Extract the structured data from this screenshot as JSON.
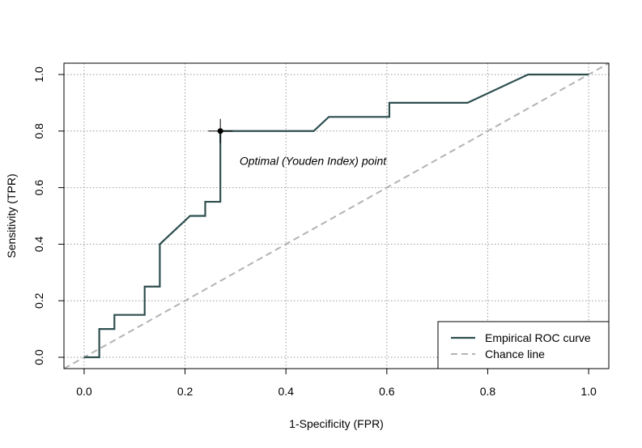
{
  "chart_data": {
    "type": "line",
    "title": "",
    "xlabel": "1-Specificity (FPR)",
    "ylabel": "Sensitivity (TPR)",
    "xlim": [
      -0.04,
      1.04
    ],
    "ylim": [
      -0.04,
      1.04
    ],
    "x_ticks": [
      0.0,
      0.2,
      0.4,
      0.6,
      0.8,
      1.0
    ],
    "y_ticks": [
      0.0,
      0.2,
      0.4,
      0.6,
      0.8,
      1.0
    ],
    "x_tick_labels": [
      "0.0",
      "0.2",
      "0.4",
      "0.6",
      "0.8",
      "1.0"
    ],
    "y_tick_labels": [
      "0.0",
      "0.2",
      "0.4",
      "0.6",
      "0.8",
      "1.0"
    ],
    "grid": true,
    "legend_position": "bottom-right",
    "series": [
      {
        "name": "Empirical ROC curve",
        "style": "solid",
        "color": "#2F4F4F",
        "x": [
          0.0,
          0.03,
          0.03,
          0.06,
          0.06,
          0.12,
          0.12,
          0.15,
          0.15,
          0.21,
          0.24,
          0.24,
          0.27,
          0.27,
          0.455,
          0.485,
          0.605,
          0.605,
          0.76,
          0.88,
          1.0
        ],
        "y": [
          0.0,
          0.0,
          0.1,
          0.1,
          0.15,
          0.15,
          0.25,
          0.25,
          0.4,
          0.5,
          0.5,
          0.55,
          0.55,
          0.8,
          0.8,
          0.85,
          0.85,
          0.9,
          0.9,
          1.0,
          1.0
        ]
      },
      {
        "name": "Chance line",
        "style": "dashed",
        "color": "#B3B3B3",
        "x": [
          -0.04,
          1.04
        ],
        "y": [
          -0.04,
          1.04
        ]
      }
    ],
    "optimal_point": {
      "x": 0.27,
      "y": 0.8
    },
    "annotation": "Optimal (Youden Index) point"
  }
}
